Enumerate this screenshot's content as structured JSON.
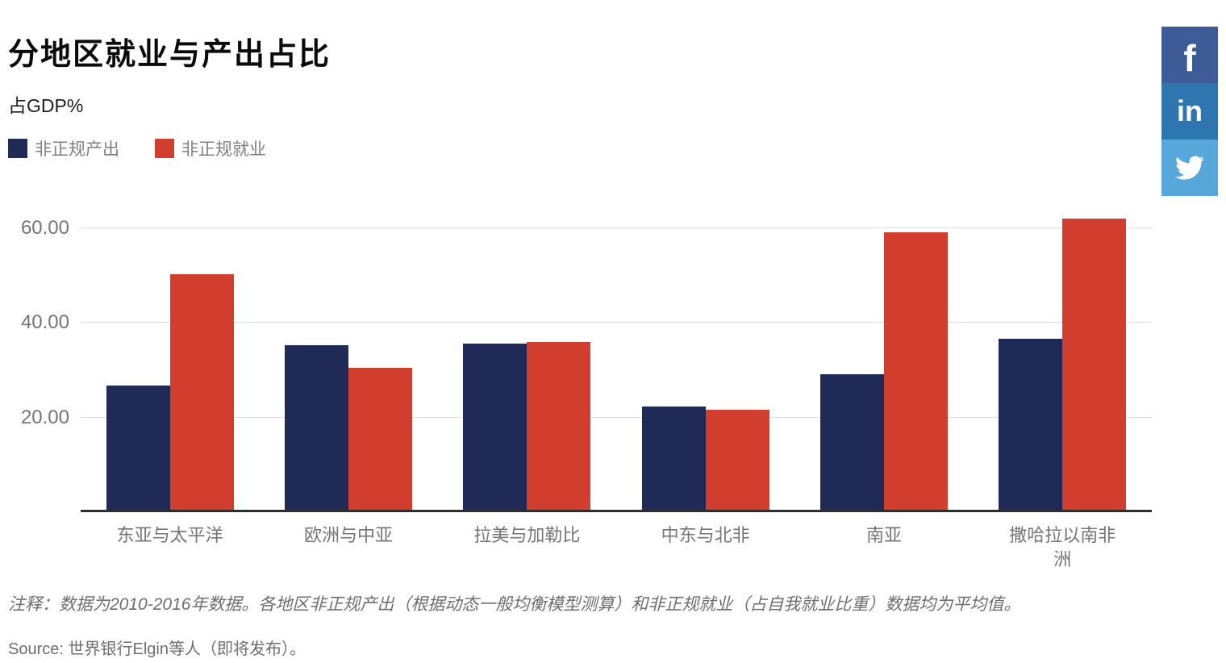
{
  "header": {
    "title": "分地区就业与产出占比",
    "subtitle": "占GDP%"
  },
  "legend": [
    {
      "key": "informal-output",
      "label": "非正规产出",
      "color": "#202A56"
    },
    {
      "key": "informal-employment",
      "label": "非正规就业",
      "color": "#D23E2E"
    }
  ],
  "social": [
    {
      "name": "facebook",
      "color": "#3D5B97"
    },
    {
      "name": "linkedin",
      "color": "#2E76AF"
    },
    {
      "name": "twitter",
      "color": "#58A7DA"
    }
  ],
  "chart_data": {
    "type": "bar",
    "title": "分地区就业与产出占比",
    "ylabel": "占GDP%",
    "categories": [
      "东亚与太平洋",
      "欧洲与中亚",
      "拉美与加勒比",
      "中东与北非",
      "南亚",
      "撒哈拉以南非洲"
    ],
    "series": [
      {
        "key": "informal-output",
        "name": "非正规产出",
        "color": "#202A56",
        "values": [
          26.7,
          35.3,
          35.6,
          22.3,
          29.1,
          36.6
        ]
      },
      {
        "key": "informal-employment",
        "name": "非正规就业",
        "color": "#D23E2E",
        "values": [
          50.3,
          30.5,
          35.9,
          21.6,
          59.1,
          62.1
        ]
      }
    ],
    "yticks": [
      20,
      40,
      60
    ],
    "ytick_labels": [
      "20.00",
      "40.00",
      "60.00"
    ],
    "ylim": [
      0,
      64.8
    ],
    "grid": true,
    "legend_position": "top-left"
  },
  "footer": {
    "note": "注释：数据为2010-2016年数据。各地区非正规产出（根据动态一般均衡模型测算）和非正规就业（占自我就业比重）数据均为平均值。",
    "source": "Source: 世界银行Elgin等人（即将发布）。"
  }
}
